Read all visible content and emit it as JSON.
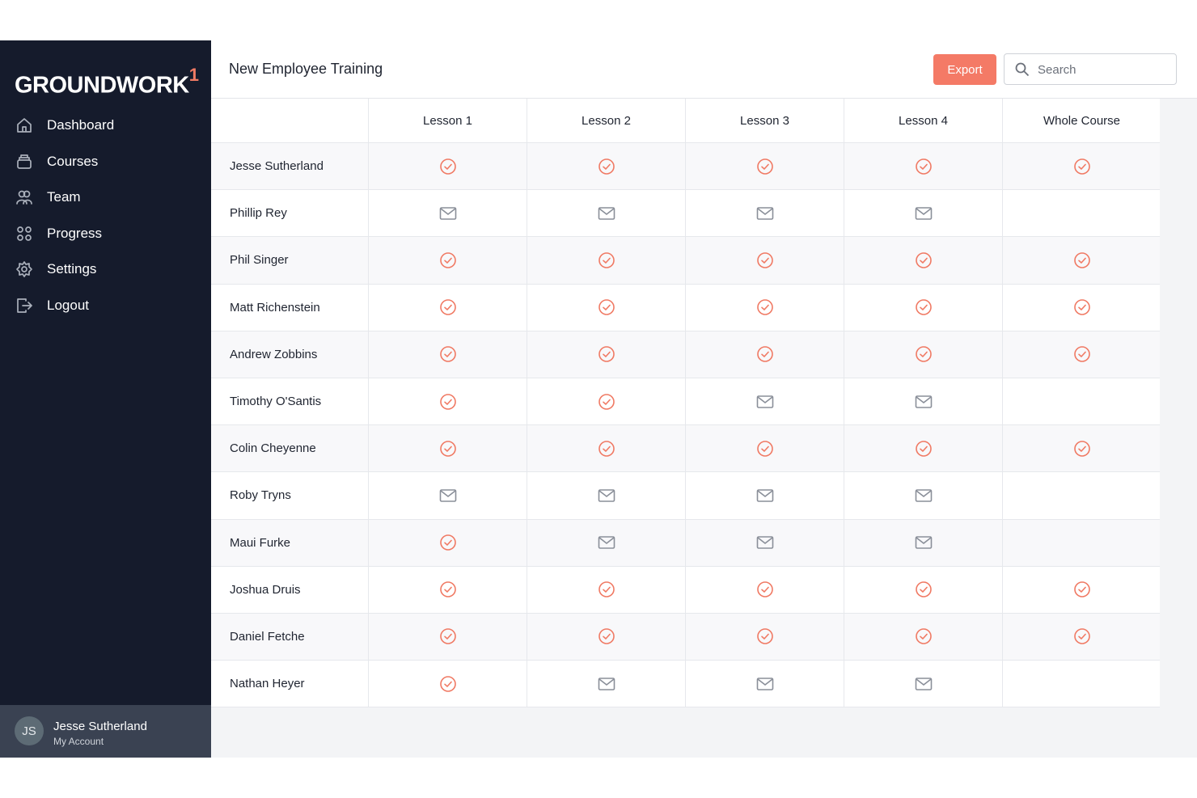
{
  "sidebar": {
    "logo": "GROUNDWORK",
    "logo_mark": "1",
    "nav": [
      "Dashboard",
      "Courses",
      "Team",
      "Progress",
      "Settings",
      "Logout"
    ],
    "account": {
      "initials": "JS",
      "name": "Jesse Sutherland",
      "link": "My Account"
    }
  },
  "header": {
    "title": "New Employee Training",
    "export": "Export",
    "search_placeholder": "Search"
  },
  "table": {
    "columns": [
      "Lesson 1",
      "Lesson 2",
      "Lesson 3",
      "Lesson 4",
      "Whole Course"
    ],
    "rows": [
      {
        "name": "Jesse Sutherland",
        "statuses": [
          "complete",
          "complete",
          "complete",
          "complete",
          "complete"
        ]
      },
      {
        "name": "Phillip Rey",
        "statuses": [
          "invited",
          "invited",
          "invited",
          "invited",
          null
        ]
      },
      {
        "name": "Phil Singer",
        "statuses": [
          "complete",
          "complete",
          "complete",
          "complete",
          "complete"
        ]
      },
      {
        "name": "Matt Richenstein",
        "statuses": [
          "complete",
          "complete",
          "complete",
          "complete",
          "complete"
        ]
      },
      {
        "name": "Andrew Zobbins",
        "statuses": [
          "complete",
          "complete",
          "complete",
          "complete",
          "complete"
        ]
      },
      {
        "name": "Timothy O'Santis",
        "statuses": [
          "complete",
          "complete",
          "invited",
          "invited",
          null
        ]
      },
      {
        "name": "Colin Cheyenne",
        "statuses": [
          "complete",
          "complete",
          "complete",
          "complete",
          "complete"
        ]
      },
      {
        "name": "Roby Tryns",
        "statuses": [
          "invited",
          "invited",
          "invited",
          "invited",
          null
        ]
      },
      {
        "name": "Maui Furke",
        "statuses": [
          "complete",
          "invited",
          "invited",
          "invited",
          null
        ]
      },
      {
        "name": "Joshua Druis",
        "statuses": [
          "complete",
          "complete",
          "complete",
          "complete",
          "complete"
        ]
      },
      {
        "name": "Daniel Fetche",
        "statuses": [
          "complete",
          "complete",
          "complete",
          "complete",
          "complete"
        ]
      },
      {
        "name": "Nathan Heyer",
        "statuses": [
          "complete",
          "invited",
          "invited",
          "invited",
          null
        ]
      }
    ]
  }
}
